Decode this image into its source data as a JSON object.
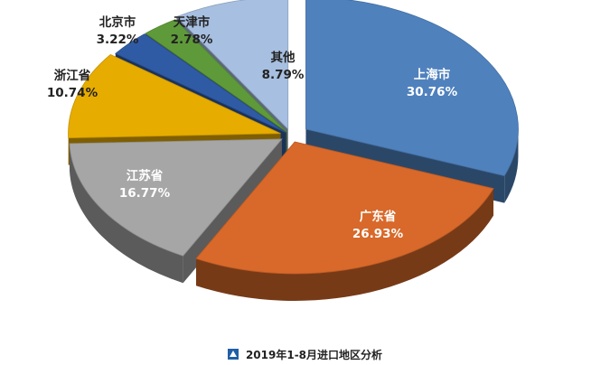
{
  "chart_data": {
    "type": "pie",
    "title": "",
    "legend": {
      "placement": "bottom",
      "entries": [
        "2019年1-8月进口地区分析"
      ]
    },
    "slices": [
      {
        "name": "上海市",
        "value": 30.76,
        "label": "30.76%",
        "color": "#4f81bd"
      },
      {
        "name": "广东省",
        "value": 26.93,
        "label": "26.93%",
        "color": "#d8692a"
      },
      {
        "name": "江苏省",
        "value": 16.77,
        "label": "16.77%",
        "color": "#a6a6a6"
      },
      {
        "name": "浙江省",
        "value": 10.74,
        "label": "10.74%",
        "color": "#e6ac00"
      },
      {
        "name": "北京市",
        "value": 3.22,
        "label": "3.22%",
        "color": "#2f5ba5"
      },
      {
        "name": "天津市",
        "value": 2.78,
        "label": "2.78%",
        "color": "#5f9a3a"
      },
      {
        "name": "其他",
        "value": 8.79,
        "label": "8.79%",
        "color": "#a7bfe0"
      }
    ]
  }
}
